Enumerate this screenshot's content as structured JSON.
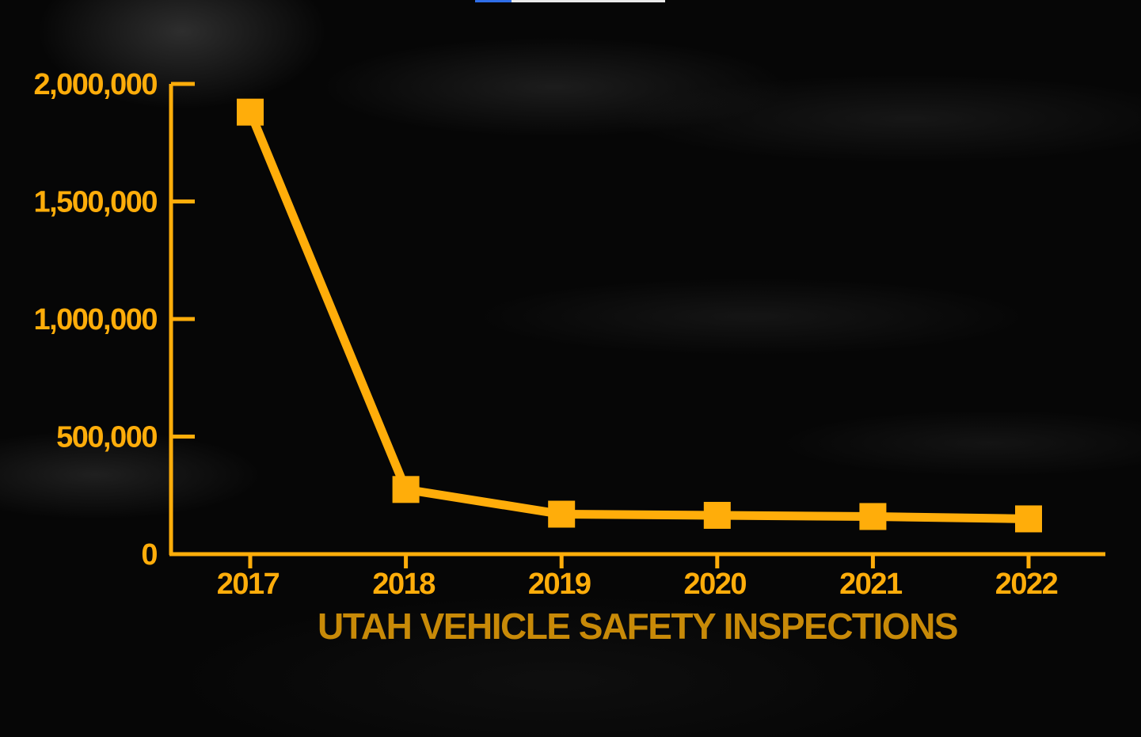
{
  "colors": {
    "line": "#FFAD0A",
    "axis": "#FFAD0A",
    "tick_label": "#FFAD0A",
    "title": "#C88A08",
    "background": "#060606"
  },
  "chart_data": {
    "type": "line",
    "title": "",
    "xlabel": "UTAH VEHICLE SAFETY INSPECTIONS",
    "ylabel": "",
    "categories": [
      "2017",
      "2018",
      "2019",
      "2020",
      "2021",
      "2022"
    ],
    "series": [
      {
        "values": [
          1880000,
          275000,
          170000,
          165000,
          160000,
          150000
        ]
      }
    ],
    "ylim": [
      0,
      2000000
    ],
    "yticks": [
      0,
      500000,
      1000000,
      1500000,
      2000000
    ],
    "ytick_labels": [
      "0",
      "500,000",
      "1,000,000",
      "1,500,000",
      "2,000,000"
    ],
    "grid": false,
    "legend": "none",
    "marker": "square"
  }
}
